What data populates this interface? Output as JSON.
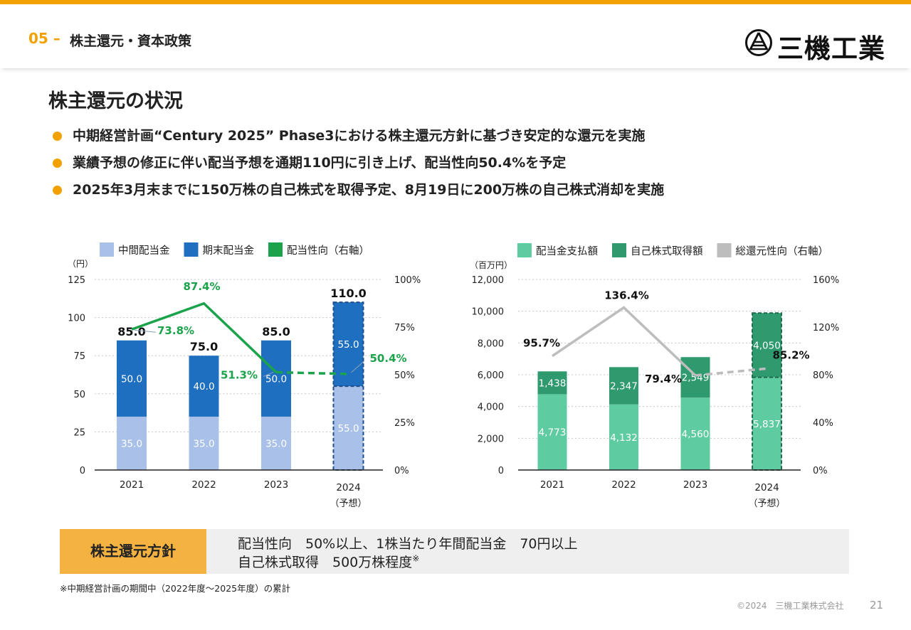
{
  "header": {
    "section_number": "05",
    "section_title": "株主還元・資本政策",
    "logo_text": "三機工業",
    "brand_color": "#f2a100"
  },
  "page_title": "株主還元の状況",
  "bullets": [
    "中期経営計画“Century 2025” Phase3における株主還元方針に基づき安定的な還元を実施",
    "業績予想の修正に伴い配当予想を通期110円に引き上げ、配当性向50.4%を予定",
    "2025年3月末までに150万株の自己株式を取得予定、8月19日に200万株の自己株式消却を実施"
  ],
  "chart_data": [
    {
      "type": "bar",
      "stacked": true,
      "title": "",
      "categories": [
        "2021",
        "2022",
        "2023",
        "2024"
      ],
      "category_sublabels": [
        "",
        "",
        "",
        "（予想）"
      ],
      "ylabel": "（円）",
      "ylim": [
        0,
        125
      ],
      "yticks": [
        0,
        25,
        50,
        75,
        100,
        125
      ],
      "y2lim": [
        0,
        100
      ],
      "y2ticks": [
        "0%",
        "25%",
        "50%",
        "75%",
        "100%"
      ],
      "series": [
        {
          "name": "中間配当金",
          "values": [
            35.0,
            35.0,
            35.0,
            55.0
          ],
          "labels": [
            "35.0",
            "35.0",
            "35.0",
            "55.0"
          ],
          "color": "#a9c1e8"
        },
        {
          "name": "期末配当金",
          "values": [
            50.0,
            40.0,
            50.0,
            55.0
          ],
          "labels": [
            "50.0",
            "40.0",
            "50.0",
            "55.0"
          ],
          "color": "#1f6fc0"
        }
      ],
      "totals": [
        "85.0",
        "75.0",
        "85.0",
        "110.0"
      ],
      "line": {
        "name": "配当性向（右軸）",
        "values": [
          73.8,
          87.4,
          51.3,
          50.4
        ],
        "labels": [
          "73.8%",
          "87.4%",
          "51.3%",
          "50.4%"
        ],
        "color": "#1aa34a",
        "axis": "right",
        "dashed_last": true
      },
      "forecast_index": 3
    },
    {
      "type": "bar",
      "stacked": true,
      "title": "",
      "categories": [
        "2021",
        "2022",
        "2023",
        "2024"
      ],
      "category_sublabels": [
        "",
        "",
        "",
        "（予想）"
      ],
      "ylabel": "（百万円）",
      "ylim": [
        0,
        12000
      ],
      "yticks": [
        0,
        2000,
        4000,
        6000,
        8000,
        10000,
        12000
      ],
      "ytick_labels": [
        "0",
        "2,000",
        "4,000",
        "6,000",
        "8,000",
        "10,000",
        "12,000"
      ],
      "y2lim": [
        0,
        160
      ],
      "y2ticks": [
        "0%",
        "40%",
        "80%",
        "120%",
        "160%"
      ],
      "series": [
        {
          "name": "配当金支払額",
          "values": [
            4773,
            4132,
            4560,
            5837
          ],
          "labels": [
            "4,773",
            "4,132",
            "4,560",
            "5,837"
          ],
          "color": "#5ecba1"
        },
        {
          "name": "自己株式取得額",
          "values": [
            1438,
            2347,
            2549,
            4050
          ],
          "labels": [
            "1,438",
            "2,347",
            "2,549",
            "4,050"
          ],
          "color": "#2e9a6e"
        }
      ],
      "line": {
        "name": "総還元性向（右軸）",
        "values": [
          95.7,
          136.4,
          79.4,
          85.2
        ],
        "labels": [
          "95.7%",
          "136.4%",
          "79.4%",
          "85.2%"
        ],
        "color": "#bdbdbd",
        "axis": "right",
        "dashed_last": true
      },
      "forecast_index": 3
    }
  ],
  "policy": {
    "label": "株主還元方針",
    "line1": "配当性向　50%以上、1株当たり年間配当金　70円以上",
    "line2": "自己株式取得　500万株程度",
    "line2_mark": "※"
  },
  "footnote": "※中期経営計画の期間中（2022年度～2025年度）の累計",
  "copyright": "©2024　三機工業株式会社",
  "page_number": "21"
}
